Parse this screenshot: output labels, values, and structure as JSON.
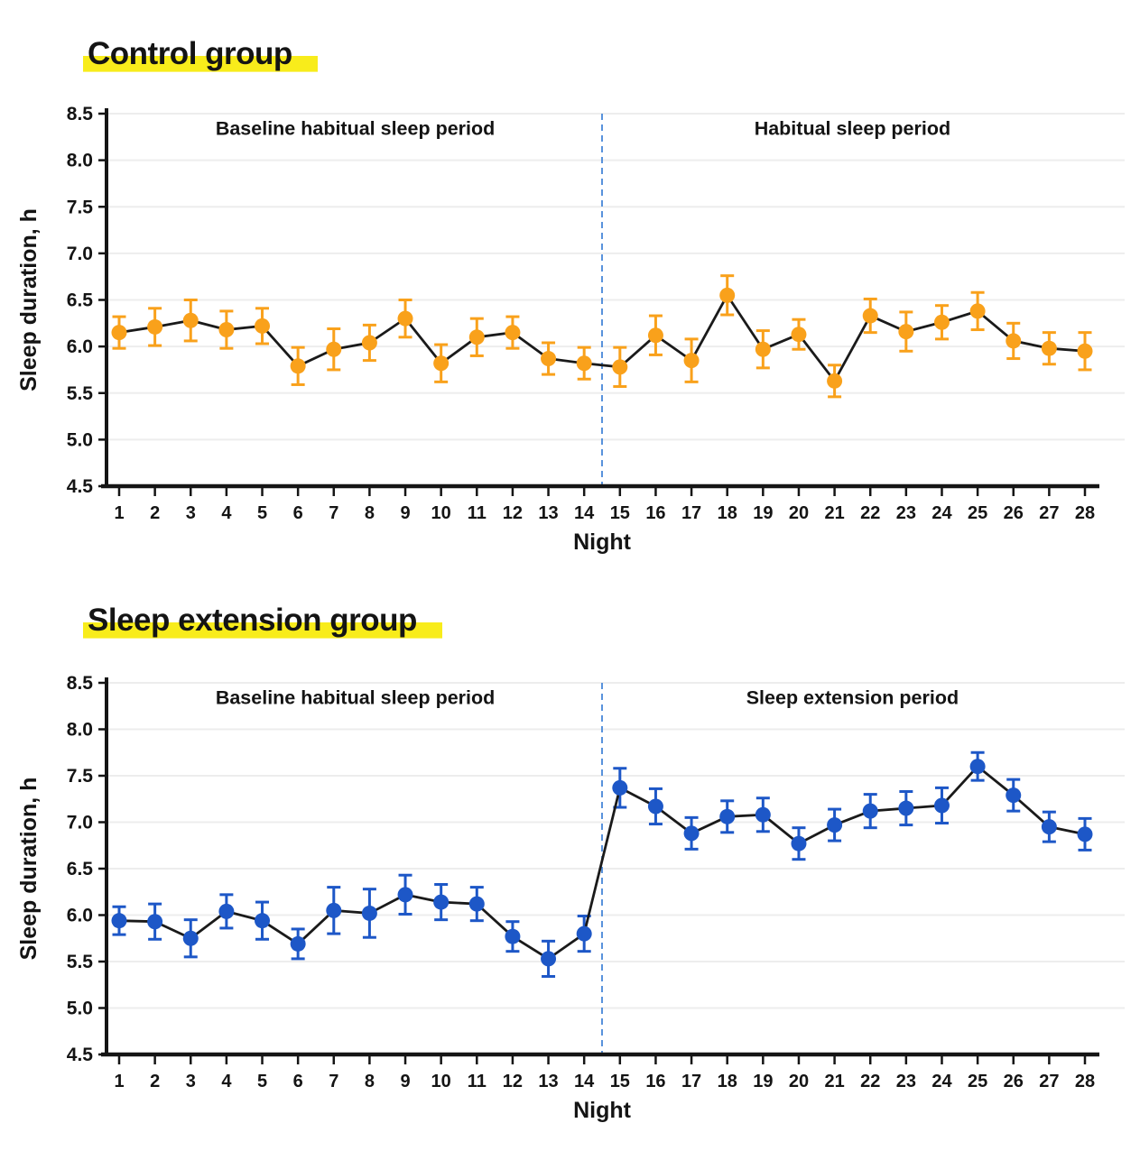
{
  "style": {
    "background": "#ffffff",
    "highlight_color": "#F8EC1B",
    "text_color": "#141414",
    "axis_color": "#151515",
    "grid_color": "#ededed",
    "trend_line_color": "#1a1a1a",
    "divider_color": "#4787D8",
    "control_color": "#F9A11B",
    "extension_color": "#1D57C7"
  },
  "chart_data": [
    {
      "type": "line",
      "title": "Control group",
      "xlabel": "Night",
      "ylabel": "Sleep duration, h",
      "ylim": [
        4.5,
        8.5
      ],
      "ytick_step": 0.5,
      "grid": "horizontal",
      "divider_night": 14.5,
      "annotations": [
        {
          "text": "Baseline habitual sleep period",
          "night_center": 7.6,
          "y_value": 8.35
        },
        {
          "text": "Habitual sleep period",
          "night_center": 21.5,
          "y_value": 8.35
        }
      ],
      "series": [
        {
          "name": "Control",
          "color": "#F9A11B",
          "marker": "circle",
          "error_bars": true,
          "x": [
            1,
            2,
            3,
            4,
            5,
            6,
            7,
            8,
            9,
            10,
            11,
            12,
            13,
            14,
            15,
            16,
            17,
            18,
            19,
            20,
            21,
            22,
            23,
            24,
            25,
            26,
            27,
            28
          ],
          "values": [
            6.15,
            6.21,
            6.28,
            6.18,
            6.22,
            5.79,
            5.97,
            6.04,
            6.3,
            5.82,
            6.1,
            6.15,
            5.87,
            5.82,
            5.78,
            6.12,
            5.85,
            6.55,
            5.97,
            6.13,
            5.63,
            6.33,
            6.16,
            6.26,
            6.38,
            6.06,
            5.98,
            5.95
          ],
          "errors": [
            0.17,
            0.2,
            0.22,
            0.2,
            0.19,
            0.2,
            0.22,
            0.19,
            0.2,
            0.2,
            0.2,
            0.17,
            0.17,
            0.17,
            0.21,
            0.21,
            0.23,
            0.21,
            0.2,
            0.16,
            0.17,
            0.18,
            0.21,
            0.18,
            0.2,
            0.19,
            0.17,
            0.2
          ]
        }
      ]
    },
    {
      "type": "line",
      "title": "Sleep extension group",
      "xlabel": "Night",
      "ylabel": "Sleep duration, h",
      "ylim": [
        4.5,
        8.5
      ],
      "ytick_step": 0.5,
      "grid": "horizontal",
      "divider_night": 14.5,
      "annotations": [
        {
          "text": "Baseline habitual sleep period",
          "night_center": 7.6,
          "y_value": 8.35
        },
        {
          "text": "Sleep extension period",
          "night_center": 21.5,
          "y_value": 8.35
        }
      ],
      "series": [
        {
          "name": "Sleep extension",
          "color": "#1D57C7",
          "marker": "circle",
          "error_bars": true,
          "x": [
            1,
            2,
            3,
            4,
            5,
            6,
            7,
            8,
            9,
            10,
            11,
            12,
            13,
            14,
            15,
            16,
            17,
            18,
            19,
            20,
            21,
            22,
            23,
            24,
            25,
            26,
            27,
            28
          ],
          "values": [
            5.94,
            5.93,
            5.75,
            6.04,
            5.94,
            5.69,
            6.05,
            6.02,
            6.22,
            6.14,
            6.12,
            5.77,
            5.53,
            5.8,
            7.37,
            7.17,
            6.88,
            7.06,
            7.08,
            6.77,
            6.97,
            7.12,
            7.15,
            7.18,
            7.6,
            7.29,
            6.95,
            6.87
          ],
          "errors": [
            0.15,
            0.19,
            0.2,
            0.18,
            0.2,
            0.16,
            0.25,
            0.26,
            0.21,
            0.19,
            0.18,
            0.16,
            0.19,
            0.19,
            0.21,
            0.19,
            0.17,
            0.17,
            0.18,
            0.17,
            0.17,
            0.18,
            0.18,
            0.19,
            0.15,
            0.17,
            0.16,
            0.17
          ]
        }
      ]
    }
  ]
}
